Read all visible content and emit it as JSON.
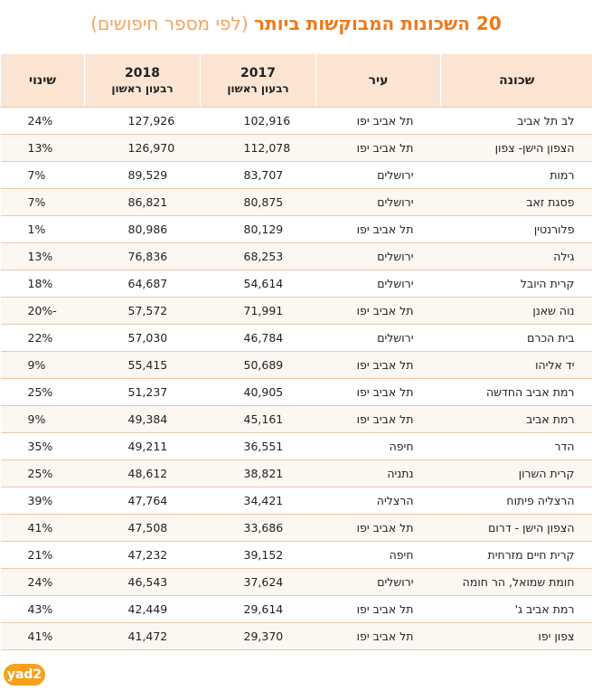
{
  "title": {
    "main": "20 השכונות המבוקשות ביותר",
    "sub": "(לפי מספר חיפושים)"
  },
  "logo": "yad2",
  "chart_data": {
    "type": "table",
    "columns": [
      {
        "key": "hood",
        "label": "שכונה",
        "sub": ""
      },
      {
        "key": "city",
        "label": "עיר",
        "sub": ""
      },
      {
        "key": "y2017",
        "label": "2017",
        "sub": "רבעון ראשון"
      },
      {
        "key": "y2018",
        "label": "2018",
        "sub": "רבעון ראשון"
      },
      {
        "key": "change",
        "label": "שינוי",
        "sub": ""
      }
    ],
    "rows": [
      {
        "hood": "לב תל אביב",
        "city": "תל אביב יפו",
        "y2017": "102,916",
        "y2018": "127,926",
        "change": "24%"
      },
      {
        "hood": "הצפון הישן- צפון",
        "city": "תל אביב יפו",
        "y2017": "112,078",
        "y2018": "126,970",
        "change": "13%"
      },
      {
        "hood": "רמות",
        "city": "ירושלים",
        "y2017": "83,707",
        "y2018": "89,529",
        "change": "7%"
      },
      {
        "hood": "פסגת זאב",
        "city": "ירושלים",
        "y2017": "80,875",
        "y2018": "86,821",
        "change": "7%"
      },
      {
        "hood": "פלורנטין",
        "city": "תל אביב יפו",
        "y2017": "80,129",
        "y2018": "80,986",
        "change": "1%"
      },
      {
        "hood": "גילה",
        "city": "ירושלים",
        "y2017": "68,253",
        "y2018": "76,836",
        "change": "13%"
      },
      {
        "hood": "קרית היובל",
        "city": "ירושלים",
        "y2017": "54,614",
        "y2018": "64,687",
        "change": "18%"
      },
      {
        "hood": "נוה שאנן",
        "city": "תל אביב יפו",
        "y2017": "71,991",
        "y2018": "57,572",
        "change": "-20%"
      },
      {
        "hood": "בית הכרם",
        "city": "ירושלים",
        "y2017": "46,784",
        "y2018": "57,030",
        "change": "22%"
      },
      {
        "hood": "יד אליהו",
        "city": "תל אביב יפו",
        "y2017": "50,689",
        "y2018": "55,415",
        "change": "9%"
      },
      {
        "hood": "רמת אביב החדשה",
        "city": "תל אביב יפו",
        "y2017": "40,905",
        "y2018": "51,237",
        "change": "25%"
      },
      {
        "hood": "רמת אביב",
        "city": "תל אביב יפו",
        "y2017": "45,161",
        "y2018": "49,384",
        "change": "9%"
      },
      {
        "hood": "הדר",
        "city": "חיפה",
        "y2017": "36,551",
        "y2018": "49,211",
        "change": "35%"
      },
      {
        "hood": "קרית השרון",
        "city": "נתניה",
        "y2017": "38,821",
        "y2018": "48,612",
        "change": "25%"
      },
      {
        "hood": "הרצליה פיתוח",
        "city": "הרצליה",
        "y2017": "34,421",
        "y2018": "47,764",
        "change": "39%"
      },
      {
        "hood": "הצפון הישן - דרום",
        "city": "תל אביב יפו",
        "y2017": "33,686",
        "y2018": "47,508",
        "change": "41%"
      },
      {
        "hood": "קרית חיים מזרחית",
        "city": "חיפה",
        "y2017": "39,152",
        "y2018": "47,232",
        "change": "21%"
      },
      {
        "hood": "חומת שמואל, הר חומה",
        "city": "ירושלים",
        "y2017": "37,624",
        "y2018": "46,543",
        "change": "24%"
      },
      {
        "hood": "רמת אביב ג'",
        "city": "תל אביב יפו",
        "y2017": "29,614",
        "y2018": "42,449",
        "change": "43%"
      },
      {
        "hood": "צפון יפו",
        "city": "תל אביב יפו",
        "y2017": "29,370",
        "y2018": "41,472",
        "change": "41%"
      }
    ]
  }
}
